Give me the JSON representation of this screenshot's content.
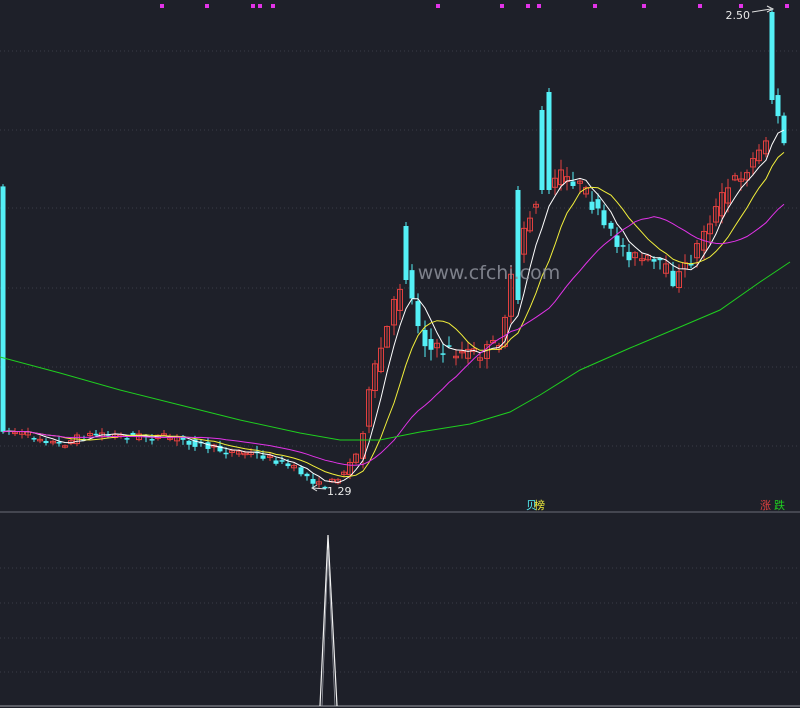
{
  "watermark": "www.cfchi.com",
  "main_panel": {
    "high_marker": "2.50",
    "low_marker": "1.29",
    "legend_left": {
      "a": "贝",
      "b": "榜"
    },
    "legend_right": {
      "a": "涨",
      "b": "跌"
    }
  },
  "colors": {
    "background": "#1e2029",
    "up_candle": "#e2403f",
    "down_candle": "#54f0f6",
    "ma_short": "#ffffff",
    "ma_mid": "#f2ef3b",
    "ma_long": "#e233e8",
    "ma_longest": "#1fcf1f",
    "marker": "#e233e8"
  }
}
